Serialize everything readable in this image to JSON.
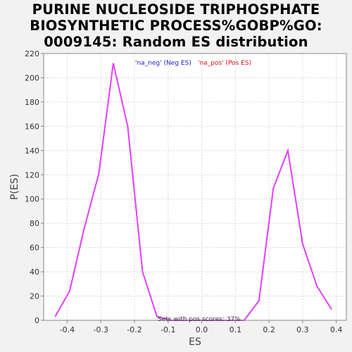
{
  "chart_data": {
    "type": "line",
    "title_lines": [
      "PURINE NUCLEOSIDE TRIPHOSPHATE",
      "BIOSYNTHETIC PROCESS%GOBP%GO:",
      "0009145: Random ES distribution"
    ],
    "xlabel": "ES",
    "ylabel": "P(ES)",
    "xlim": [
      -0.47,
      0.43
    ],
    "ylim": [
      0,
      220
    ],
    "xticks": [
      -0.4,
      -0.3,
      -0.2,
      -0.1,
      0.0,
      0.1,
      0.2,
      0.3,
      0.4
    ],
    "xtick_labels": [
      "-0.4",
      "-0.3",
      "-0.2",
      "-0.1",
      "0.0",
      "0.1",
      "0.2",
      "0.3",
      "0.4"
    ],
    "yticks": [
      0,
      20,
      40,
      60,
      80,
      100,
      120,
      140,
      160,
      180,
      200,
      220
    ],
    "ytick_labels": [
      "0",
      "20",
      "40",
      "60",
      "80",
      "100",
      "120",
      "140",
      "160",
      "180",
      "200",
      "220"
    ],
    "grid": true,
    "legend": {
      "placement": "top-center",
      "neg_label": "'na_neg' (Neg ES)",
      "pos_label": "'na_pos' (Pos ES)"
    },
    "annotation": "Sets with pos scores: 37%",
    "series": [
      {
        "name": "'na_pos' (Pos ES)",
        "color": "#e040fb",
        "x": [
          -0.436,
          -0.393,
          -0.35,
          -0.306,
          -0.263,
          -0.22,
          -0.176,
          -0.133,
          -0.09,
          -0.047,
          -0.004,
          0.04,
          0.083,
          0.126,
          0.17,
          0.213,
          0.256,
          0.3,
          0.343,
          0.386
        ],
        "y": [
          3,
          24,
          75,
          121,
          212,
          160,
          40,
          3,
          0,
          0,
          0,
          0,
          0,
          0,
          16,
          109,
          140,
          63,
          28,
          9
        ]
      }
    ]
  },
  "colors": {
    "background": "#f2f2f2",
    "plot_background": "#ffffff",
    "grid": "#d8d8d8",
    "line": "#e040fb"
  }
}
